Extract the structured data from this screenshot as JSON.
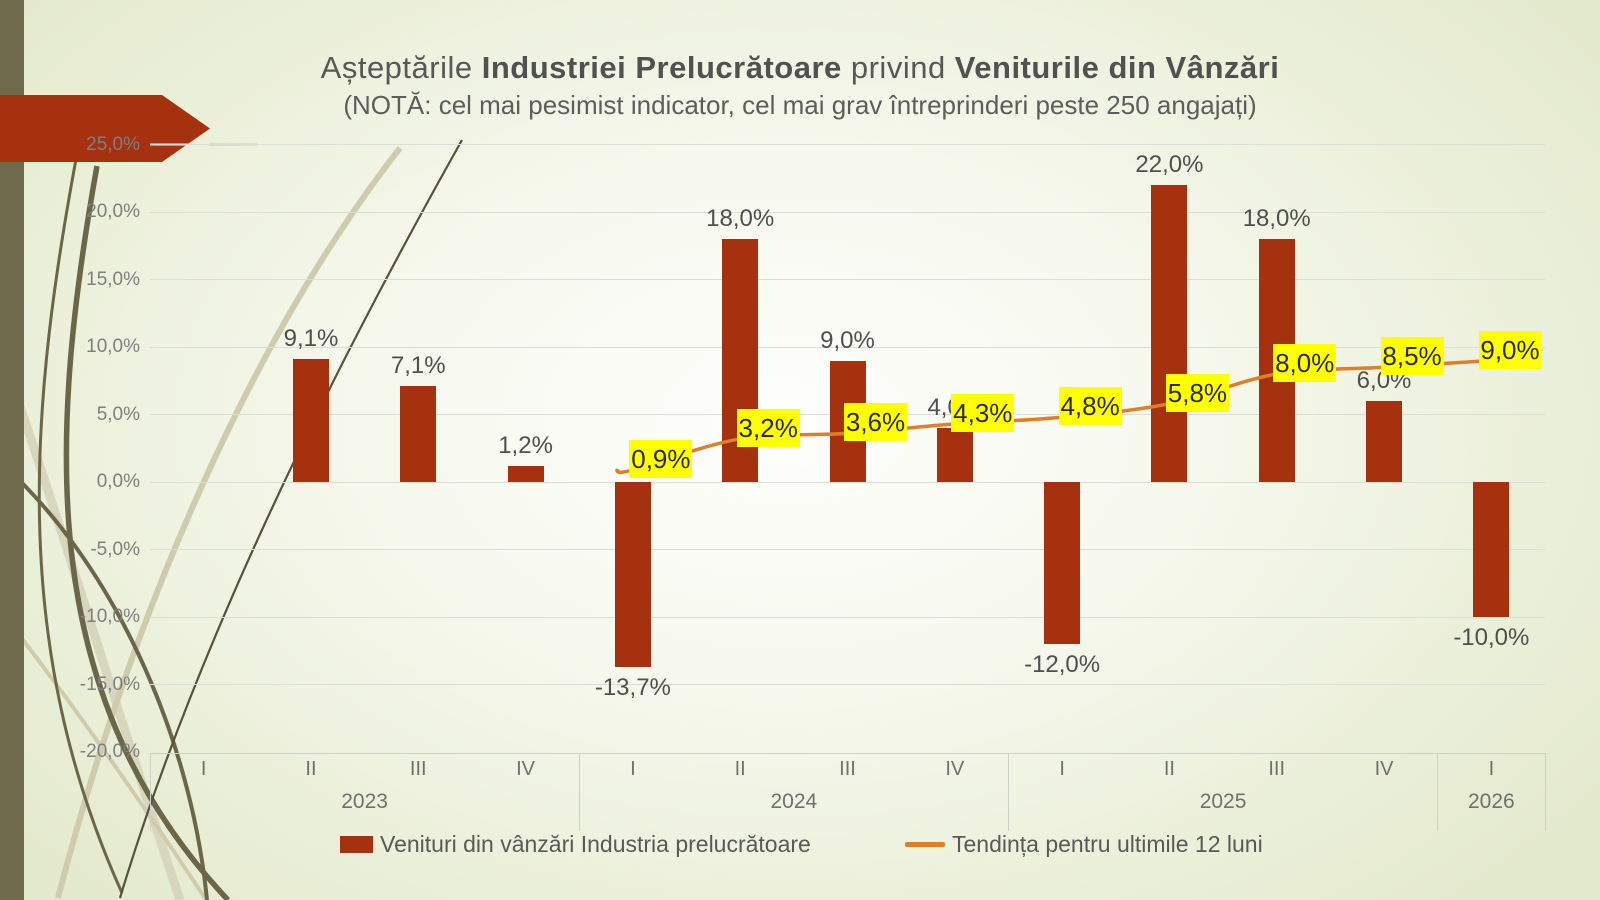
{
  "slide": {
    "title": {
      "prefix": "Așteptările ",
      "bold1": "Industriei Prelucrătoare",
      "mid": " privind ",
      "bold2": "Veniturile din Vânzări"
    },
    "subtitle": "(NOTĂ: cel mai pesimist indicator, cel mai grav întreprinderi peste 250 angajați)"
  },
  "colors": {
    "bar": "#A6310F",
    "trend": "#E07F26",
    "trend_label_bg": "#FFFF00",
    "accent_left_bar": "#6F6A4B",
    "arrow_banner": "#A6310F"
  },
  "chart_data": {
    "type": "bar",
    "title": "Așteptările Industriei Prelucrătoare privind Veniturile din Vânzări",
    "subtitle": "(NOTĂ: cel mai pesimist indicator, cel mai grav întreprinderi peste 250 angajați)",
    "categories": [
      "I",
      "II",
      "III",
      "IV",
      "I",
      "II",
      "III",
      "IV",
      "I",
      "II",
      "III",
      "IV",
      "I"
    ],
    "year_groups": [
      {
        "label": "2023",
        "quarters": 4
      },
      {
        "label": "2024",
        "quarters": 4
      },
      {
        "label": "2025",
        "quarters": 4
      },
      {
        "label": "2026",
        "quarters": 1
      }
    ],
    "series": [
      {
        "name": "Venituri din vânzări Industria prelucrătoare",
        "type": "bar",
        "color": "#A6310F",
        "values": [
          null,
          9.1,
          7.1,
          1.2,
          -13.7,
          18.0,
          9.0,
          4.0,
          -12.0,
          22.0,
          18.0,
          6.0,
          -10.0
        ],
        "labels": [
          null,
          "9,1%",
          "7,1%",
          "1,2%",
          "-13,7%",
          "18,0%",
          "9,0%",
          "4,0%",
          "-12,0%",
          "22,0%",
          "18,0%",
          "6,0%",
          "-10,0%"
        ]
      },
      {
        "name": "Tendința  pentru ultimile 12 luni",
        "type": "line",
        "color": "#E07F26",
        "values": [
          null,
          null,
          null,
          null,
          0.9,
          3.2,
          3.6,
          4.3,
          4.8,
          5.8,
          8.0,
          8.5,
          9.0
        ],
        "labels": [
          null,
          null,
          null,
          null,
          "0,9%",
          "3,2%",
          "3,6%",
          "4,3%",
          "4,8%",
          "5,8%",
          "8,0%",
          "8,5%",
          "9,0%"
        ]
      }
    ],
    "ylim": [
      -20,
      25
    ],
    "yticks": {
      "values": [
        25,
        20,
        15,
        10,
        5,
        0,
        -5,
        -10,
        -15,
        -20
      ],
      "labels": [
        "25,0%",
        "20,0%",
        "15,0%",
        "10,0%",
        "5,0%",
        "0,0%",
        "-5,0%",
        "-10,0%",
        "-15,0%",
        "-20,0%"
      ]
    },
    "grid": true,
    "legend_position": "bottom"
  }
}
